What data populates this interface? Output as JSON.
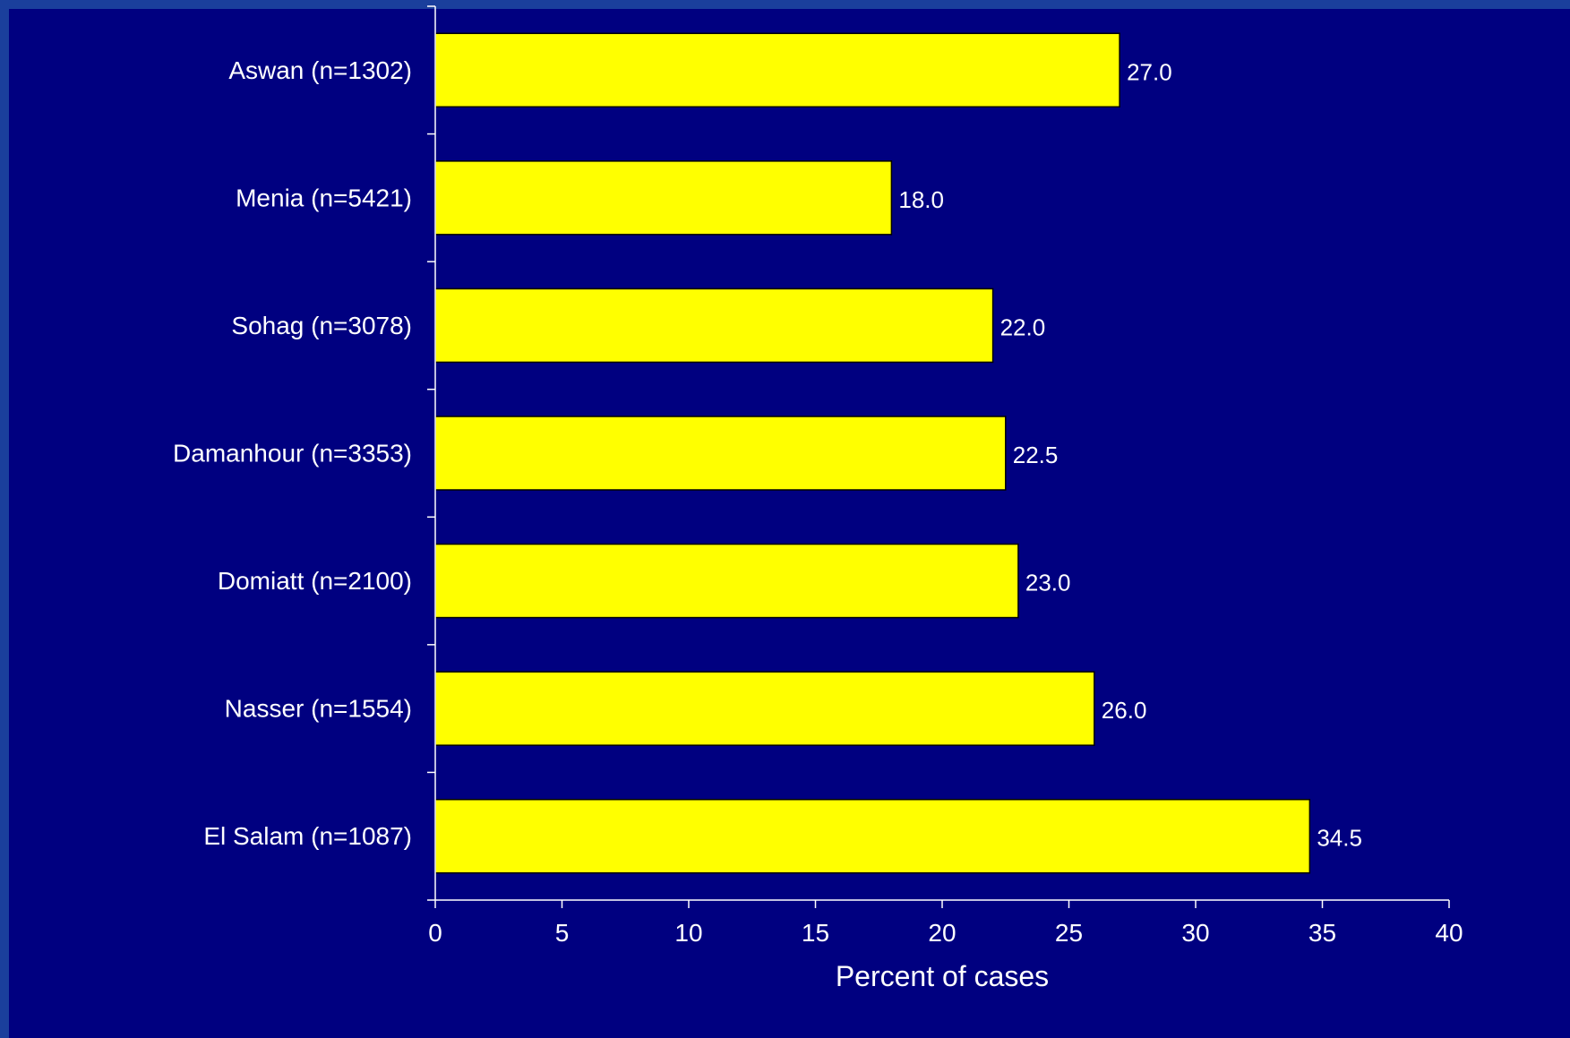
{
  "chart_data": {
    "type": "bar",
    "orientation": "horizontal",
    "categories": [
      "Aswan (n=1302)",
      "Menia (n=5421)",
      "Sohag (n=3078)",
      "Damanhour (n=3353)",
      "Domiatt (n=2100)",
      "Nasser (n=1554)",
      "El Salam (n=1087)"
    ],
    "values": [
      27.0,
      18.0,
      22.0,
      22.5,
      23.0,
      26.0,
      34.5
    ],
    "value_labels": [
      "27.0",
      "18.0",
      "22.0",
      "22.5",
      "23.0",
      "26.0",
      "34.5"
    ],
    "xlabel": "Percent of cases",
    "xlim": [
      0,
      40
    ],
    "xticks": [
      0,
      5,
      10,
      15,
      20,
      25,
      30,
      35,
      40
    ],
    "grid": false,
    "legend": "none",
    "colors": {
      "background": "#000080",
      "bar": "#ffff00",
      "text": "#ffffff"
    }
  }
}
